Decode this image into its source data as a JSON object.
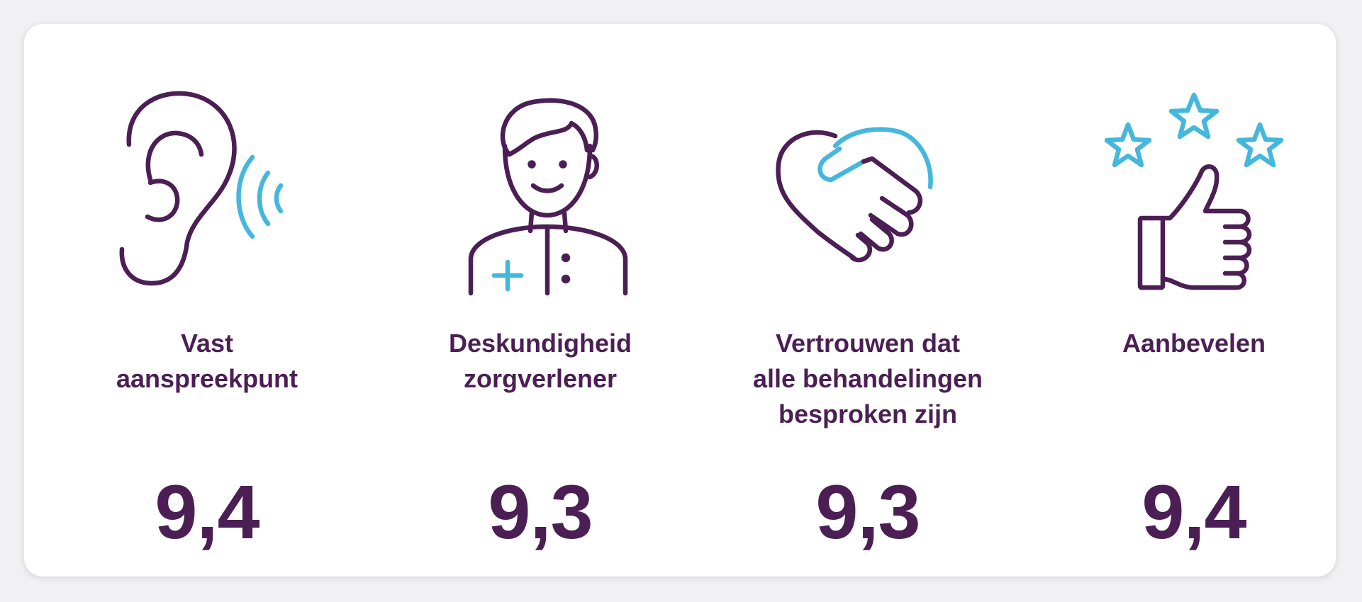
{
  "colors": {
    "purple": "#4b1f54",
    "cyan": "#45b7dc",
    "card": "#ffffff",
    "background": "#f1f1f3"
  },
  "items": [
    {
      "icon": "ear-sound-icon",
      "label": "Vast\naanspreekpunt",
      "score": "9,4"
    },
    {
      "icon": "healthcare-provider-icon",
      "label": "Deskundigheid\nzorgverlener",
      "score": "9,3"
    },
    {
      "icon": "heart-handshake-icon",
      "label": "Vertrouwen dat\nalle behandelingen\nbesproken zijn",
      "score": "9,3"
    },
    {
      "icon": "thumbs-up-stars-icon",
      "label": "Aanbevelen",
      "score": "9,4"
    }
  ]
}
